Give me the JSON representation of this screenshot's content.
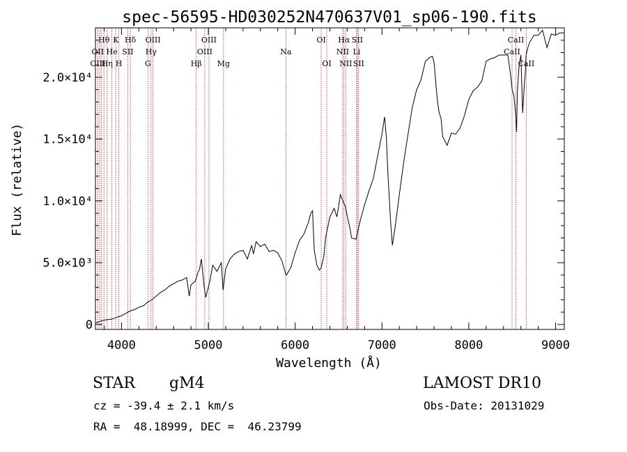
{
  "chart_data": {
    "type": "line",
    "title": "spec-56595-HD030252N470637V01_sp06-190.fits",
    "xlabel": "Wavelength (Å)",
    "ylabel": "Flux (relative)",
    "xlim": [
      3700,
      9100
    ],
    "ylim": [
      -400,
      24000
    ],
    "x_ticks": [
      4000,
      5000,
      6000,
      7000,
      8000,
      9000
    ],
    "y_ticks": [
      {
        "value": 0,
        "label": "0"
      },
      {
        "value": 5000,
        "label": "5.0×10³"
      },
      {
        "value": 10000,
        "label": "1.0×10⁴"
      },
      {
        "value": 15000,
        "label": "1.5×10⁴"
      },
      {
        "value": 20000,
        "label": "2.0×10⁴"
      }
    ],
    "series": [
      {
        "color": "#000000",
        "x": [
          3700,
          3750,
          3800,
          3850,
          3900,
          3950,
          4000,
          4050,
          4100,
          4150,
          4200,
          4250,
          4300,
          4350,
          4400,
          4450,
          4500,
          4550,
          4600,
          4650,
          4700,
          4750,
          4780,
          4800,
          4850,
          4880,
          4900,
          4920,
          4950,
          4970,
          5000,
          5020,
          5050,
          5100,
          5150,
          5170,
          5200,
          5250,
          5300,
          5350,
          5400,
          5450,
          5500,
          5520,
          5550,
          5600,
          5650,
          5700,
          5750,
          5800,
          5850,
          5890,
          5900,
          5950,
          6000,
          6050,
          6100,
          6150,
          6180,
          6200,
          6220,
          6250,
          6280,
          6300,
          6330,
          6350,
          6400,
          6450,
          6480,
          6500,
          6520,
          6550,
          6580,
          6600,
          6630,
          6650,
          6700,
          6720,
          6750,
          6800,
          6850,
          6900,
          6950,
          7000,
          7030,
          7050,
          7070,
          7100,
          7120,
          7150,
          7200,
          7250,
          7300,
          7350,
          7400,
          7450,
          7500,
          7550,
          7580,
          7600,
          7620,
          7640,
          7660,
          7680,
          7700,
          7750,
          7800,
          7850,
          7900,
          7950,
          8000,
          8050,
          8100,
          8150,
          8200,
          8250,
          8300,
          8350,
          8400,
          8450,
          8480,
          8500,
          8520,
          8540,
          8550,
          8560,
          8580,
          8600,
          8620,
          8640,
          8650,
          8660,
          8680,
          8700,
          8750,
          8800,
          8850,
          8900,
          8950,
          9000,
          9050,
          9100
        ],
        "y": [
          100,
          250,
          350,
          400,
          450,
          600,
          700,
          900,
          1100,
          1200,
          1400,
          1500,
          1800,
          2000,
          2300,
          2600,
          2800,
          3100,
          3300,
          3500,
          3600,
          3800,
          2300,
          3200,
          3500,
          4200,
          4500,
          5300,
          3200,
          2200,
          3000,
          3600,
          4800,
          4300,
          5000,
          2800,
          4500,
          5300,
          5700,
          5900,
          6000,
          5300,
          6400,
          5700,
          6700,
          6300,
          6500,
          5900,
          6000,
          5800,
          5100,
          4100,
          4000,
          4600,
          5800,
          6800,
          7300,
          8200,
          9000,
          9200,
          6000,
          4800,
          4400,
          4600,
          5500,
          7000,
          8700,
          9400,
          8700,
          9500,
          10500,
          10000,
          9500,
          8800,
          7800,
          7000,
          6900,
          7500,
          8400,
          9700,
          10800,
          11800,
          13600,
          15400,
          16800,
          15200,
          12000,
          8300,
          6400,
          7800,
          10500,
          13100,
          15400,
          17600,
          19000,
          19800,
          21300,
          21600,
          21700,
          21200,
          19600,
          18000,
          17100,
          16700,
          15200,
          14500,
          15500,
          15400,
          15900,
          16900,
          18200,
          18900,
          19200,
          19700,
          21300,
          21500,
          21600,
          21800,
          21800,
          21800,
          20300,
          19000,
          18500,
          17000,
          15600,
          18900,
          21000,
          21800,
          17100,
          19500,
          20200,
          21800,
          22400,
          22800,
          23400,
          23400,
          23800,
          22400,
          23500,
          23400,
          23600,
          23600
        ]
      }
    ],
    "spectral_lines": [
      {
        "label": "Hθ",
        "wl": 3798,
        "row": 0
      },
      {
        "label": "K",
        "wl": 3934,
        "row": 0
      },
      {
        "label": "Hδ",
        "wl": 4102,
        "row": 0
      },
      {
        "label": "OIII",
        "wl": 4363,
        "row": 0
      },
      {
        "label": "OIII",
        "wl": 5007,
        "row": 0
      },
      {
        "label": "OI",
        "wl": 6300,
        "row": 0
      },
      {
        "label": "Hα",
        "wl": 6563,
        "row": 0
      },
      {
        "label": "SII",
        "wl": 6716,
        "row": 0
      },
      {
        "label": "CaII",
        "wl": 8542,
        "row": 0
      },
      {
        "label": "OII",
        "wl": 3727,
        "row": 1
      },
      {
        "label": "He",
        "wl": 3889,
        "row": 1
      },
      {
        "label": "SII",
        "wl": 4072,
        "row": 1
      },
      {
        "label": "Hγ",
        "wl": 4340,
        "row": 1
      },
      {
        "label": "OIII",
        "wl": 4959,
        "row": 1
      },
      {
        "label": "Na",
        "wl": 5893,
        "row": 1
      },
      {
        "label": "NII",
        "wl": 6548,
        "row": 1
      },
      {
        "label": "Li",
        "wl": 6708,
        "row": 1
      },
      {
        "label": "CaII",
        "wl": 8498,
        "row": 1
      },
      {
        "label": "OIII",
        "wl": 3727,
        "row": 2
      },
      {
        "label": "Hη",
        "wl": 3835,
        "row": 2
      },
      {
        "label": "H",
        "wl": 3969,
        "row": 2
      },
      {
        "label": "G",
        "wl": 4304,
        "row": 2
      },
      {
        "label": "Hβ",
        "wl": 4861,
        "row": 2
      },
      {
        "label": "Mg",
        "wl": 5175,
        "row": 2
      },
      {
        "label": "OI",
        "wl": 6364,
        "row": 2
      },
      {
        "label": "NII",
        "wl": 6583,
        "row": 2
      },
      {
        "label": "SII",
        "wl": 6731,
        "row": 2
      },
      {
        "label": "CaII",
        "wl": 8662,
        "row": 2
      }
    ],
    "marker_lines": [
      3727,
      3750,
      3771,
      3798,
      3835,
      3889,
      3934,
      3969,
      4072,
      4102,
      4304,
      4340,
      4363,
      4861,
      4959,
      5007,
      5175,
      5893,
      6300,
      6364,
      6548,
      6563,
      6583,
      6708,
      6716,
      6731,
      8498,
      8542,
      8662
    ],
    "line_color": "#b22222",
    "grid": false
  },
  "info": {
    "object_type": "STAR",
    "subclass": "gM4",
    "survey": "LAMOST DR10",
    "redshift": "cz = -39.4 ± 2.1 km/s",
    "obs_date": "Obs-Date: 20131029",
    "coords": "RA =  48.18999, DEC =  46.23799"
  }
}
